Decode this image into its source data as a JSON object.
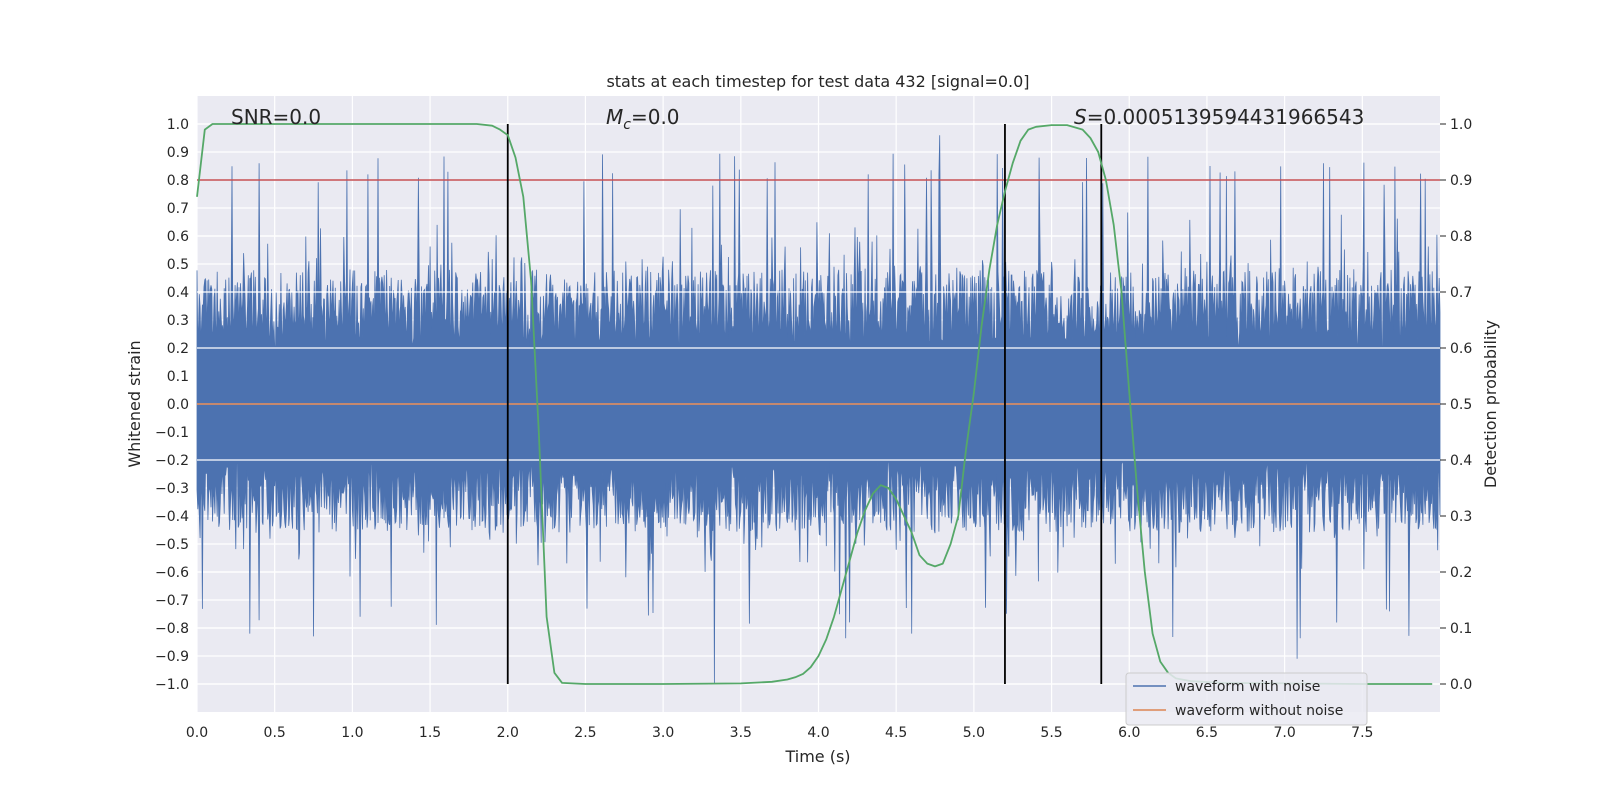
{
  "chart_data": {
    "type": "line",
    "title": "stats at each timestep for test data 432 [signal=0.0]",
    "xlabel": "Time (s)",
    "ylabel_left": "Whitened strain",
    "ylabel_right": "Detection probability",
    "xlim": [
      0.0,
      8.0
    ],
    "ylim_left": [
      -1.1,
      1.1
    ],
    "ylim_right": [
      -0.05,
      1.05
    ],
    "x_ticks": [
      "0.0",
      "0.5",
      "1.0",
      "1.5",
      "2.0",
      "2.5",
      "3.0",
      "3.5",
      "4.0",
      "4.5",
      "5.0",
      "5.5",
      "6.0",
      "6.5",
      "7.0",
      "7.5"
    ],
    "y_ticks_left": [
      "1.0",
      "0.9",
      "0.8",
      "0.7",
      "0.6",
      "0.5",
      "0.4",
      "0.3",
      "0.2",
      "0.1",
      "0.0",
      "−0.1",
      "−0.2",
      "−0.3",
      "−0.4",
      "−0.5",
      "−0.6",
      "−0.7",
      "−0.8",
      "−0.9",
      "−1.0"
    ],
    "y_ticks_right": [
      "1.0",
      "0.9",
      "0.8",
      "0.7",
      "0.6",
      "0.5",
      "0.4",
      "0.3",
      "0.2",
      "0.1",
      "0.0"
    ],
    "grid": true,
    "legend_position": "lower right",
    "annotations": {
      "snr": "SNR=0.0",
      "mc_sym": "M",
      "mc_sub": "c",
      "mc_val": "=0.0",
      "s_sym": "S",
      "s_val": "=0.0005139594431966543"
    },
    "threshold_line": {
      "axis": "right",
      "y": 0.9,
      "color": "#c44e52"
    },
    "vertical_lines": {
      "x": [
        2.0,
        5.2,
        5.82
      ],
      "y_range_right": [
        0.0,
        1.0
      ],
      "color": "#000000"
    },
    "series": [
      {
        "name": "waveform with noise",
        "axis": "left",
        "color": "#4c72b0",
        "description_values": {
          "envelope_typical": 0.5,
          "max": 0.96,
          "min": -1.0
        }
      },
      {
        "name": "waveform without noise",
        "axis": "left",
        "color": "#dd8452",
        "y": 0.0
      },
      {
        "name": "detection probability",
        "axis": "right",
        "color": "#55a868",
        "x": [
          0.0,
          0.05,
          0.1,
          0.15,
          0.2,
          0.5,
          1.0,
          1.5,
          1.8,
          1.9,
          1.95,
          2.0,
          2.05,
          2.1,
          2.15,
          2.2,
          2.25,
          2.3,
          2.35,
          2.5,
          3.0,
          3.5,
          3.7,
          3.8,
          3.85,
          3.9,
          3.95,
          4.0,
          4.05,
          4.1,
          4.15,
          4.2,
          4.25,
          4.3,
          4.35,
          4.4,
          4.45,
          4.5,
          4.55,
          4.6,
          4.65,
          4.7,
          4.75,
          4.8,
          4.85,
          4.9,
          4.95,
          5.0,
          5.05,
          5.1,
          5.15,
          5.2,
          5.25,
          5.3,
          5.35,
          5.4,
          5.5,
          5.6,
          5.7,
          5.75,
          5.8,
          5.85,
          5.9,
          5.95,
          6.0,
          6.05,
          6.1,
          6.15,
          6.2,
          6.25,
          6.3,
          6.4,
          6.6,
          7.0,
          7.5,
          7.95
        ],
        "y": [
          0.87,
          0.99,
          1.0,
          1.0,
          1.0,
          1.0,
          1.0,
          1.0,
          1.0,
          0.997,
          0.99,
          0.98,
          0.94,
          0.87,
          0.72,
          0.45,
          0.12,
          0.02,
          0.002,
          0.0,
          0.0,
          0.001,
          0.004,
          0.008,
          0.012,
          0.018,
          0.03,
          0.05,
          0.08,
          0.12,
          0.17,
          0.22,
          0.27,
          0.31,
          0.34,
          0.355,
          0.35,
          0.33,
          0.3,
          0.27,
          0.23,
          0.215,
          0.21,
          0.215,
          0.25,
          0.3,
          0.42,
          0.52,
          0.64,
          0.74,
          0.82,
          0.88,
          0.93,
          0.97,
          0.99,
          0.995,
          0.998,
          0.998,
          0.99,
          0.975,
          0.95,
          0.9,
          0.82,
          0.7,
          0.52,
          0.35,
          0.2,
          0.09,
          0.04,
          0.02,
          0.01,
          0.005,
          0.002,
          0.001,
          0.0,
          0.0
        ]
      }
    ]
  }
}
